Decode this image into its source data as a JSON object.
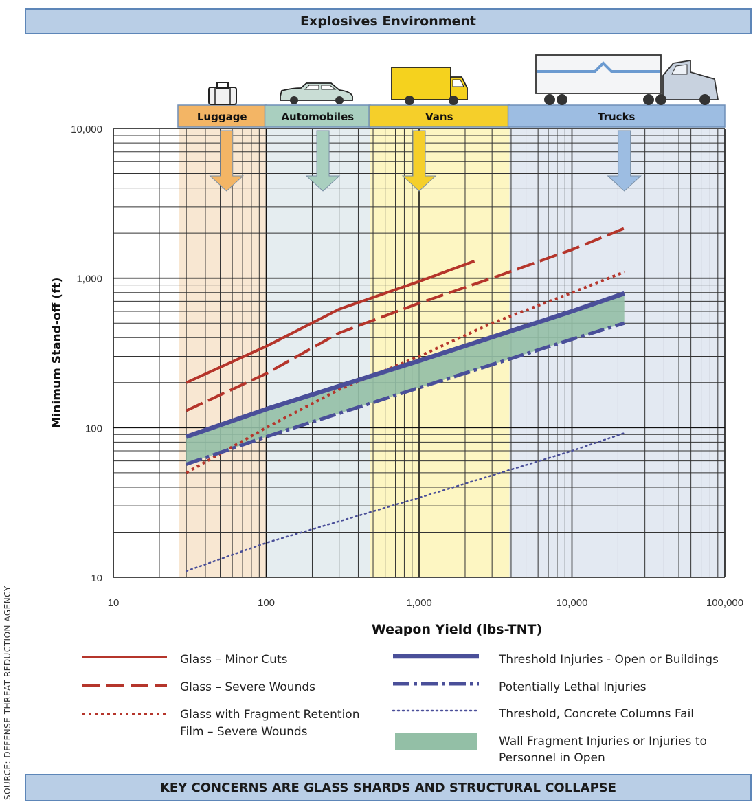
{
  "header": {
    "title": "Explosives Environment"
  },
  "footer": {
    "title": "KEY CONCERNS ARE GLASS SHARDS AND STRUCTURAL COLLAPSE"
  },
  "source": "SOURCE: DEFENSE THREAT REDUCTION AGENCY",
  "legend": [
    {
      "label": "Glass – Minor Cuts",
      "line2": ""
    },
    {
      "label": "Glass – Severe Wounds",
      "line2": ""
    },
    {
      "label": "Glass with Fragment Retention",
      "line2": "Film – Severe Wounds"
    },
    {
      "label": "Threshold Injuries - Open or Buildings",
      "line2": ""
    },
    {
      "label": "Potentially Lethal Injuries",
      "line2": ""
    },
    {
      "label": "Threshold, Concrete Columns Fail",
      "line2": ""
    },
    {
      "label": "Wall Fragment Injuries or Injuries to",
      "line2": "Personnel in Open"
    }
  ],
  "chart_data": {
    "type": "line",
    "xlabel": "Weapon Yield (lbs-TNT)",
    "ylabel": "Minimum Stand-off (ft)",
    "xscale": "log",
    "yscale": "log",
    "xlim": [
      10,
      100000
    ],
    "ylim": [
      10,
      10000
    ],
    "xticks": [
      "10",
      "100",
      "1,000",
      "10,000",
      "100,000"
    ],
    "yticks": [
      "10",
      "100",
      "1,000",
      "10,000"
    ],
    "grid": true,
    "legend_position": "bottom",
    "categories": [
      {
        "name": "Luggage",
        "range": [
          27,
          100
        ],
        "color": "#f3b565",
        "bg": "#f8e7d2",
        "icon": "luggage-icon"
      },
      {
        "name": "Automobiles",
        "range": [
          100,
          480
        ],
        "color": "#a9cfbf",
        "bg": "#e5edf0",
        "icon": "car-icon"
      },
      {
        "name": "Vans",
        "range": [
          480,
          3900
        ],
        "color": "#f5cf2a",
        "bg": "#fdf6c2",
        "icon": "van-icon"
      },
      {
        "name": "Trucks",
        "range": [
          3900,
          100000
        ],
        "color": "#9dbde2",
        "bg": "#e3e9f2",
        "icon": "truck-icon"
      }
    ],
    "series": [
      {
        "name": "Glass – Minor Cuts",
        "color": "#b5352b",
        "style": "solid",
        "x": [
          30,
          100,
          300,
          1000,
          2300
        ],
        "y": [
          200,
          350,
          620,
          950,
          1300
        ]
      },
      {
        "name": "Glass – Severe Wounds",
        "color": "#b5352b",
        "style": "longdash",
        "x": [
          30,
          100,
          300,
          1000,
          3000,
          10000,
          22000
        ],
        "y": [
          130,
          230,
          430,
          680,
          1000,
          1550,
          2150
        ]
      },
      {
        "name": "Glass with Fragment Retention Film – Severe Wounds",
        "color": "#b5352b",
        "style": "dotted",
        "x": [
          30,
          100,
          300,
          1000,
          3000,
          10000,
          22000
        ],
        "y": [
          50,
          100,
          180,
          300,
          500,
          800,
          1100
        ]
      },
      {
        "name": "Threshold Injuries - Open or Buildings",
        "color": "#4a4f99",
        "style": "thick",
        "x": [
          30,
          100,
          1000,
          10000,
          22000
        ],
        "y": [
          87,
          133,
          280,
          600,
          790
        ]
      },
      {
        "name": "Potentially Lethal Injuries",
        "color": "#4a4f99",
        "style": "dashdot",
        "x": [
          30,
          100,
          1000,
          10000,
          22000
        ],
        "y": [
          57,
          87,
          185,
          390,
          500
        ]
      },
      {
        "name": "Threshold, Concrete Columns Fail",
        "color": "#4a4f99",
        "style": "finedot",
        "x": [
          30,
          100,
          1000,
          10000,
          22000
        ],
        "y": [
          11,
          17,
          34,
          70,
          92
        ]
      }
    ],
    "band": {
      "name": "Wall Fragment Injuries or Injuries to Personnel in Open",
      "color": "#93bfa6"
    }
  }
}
